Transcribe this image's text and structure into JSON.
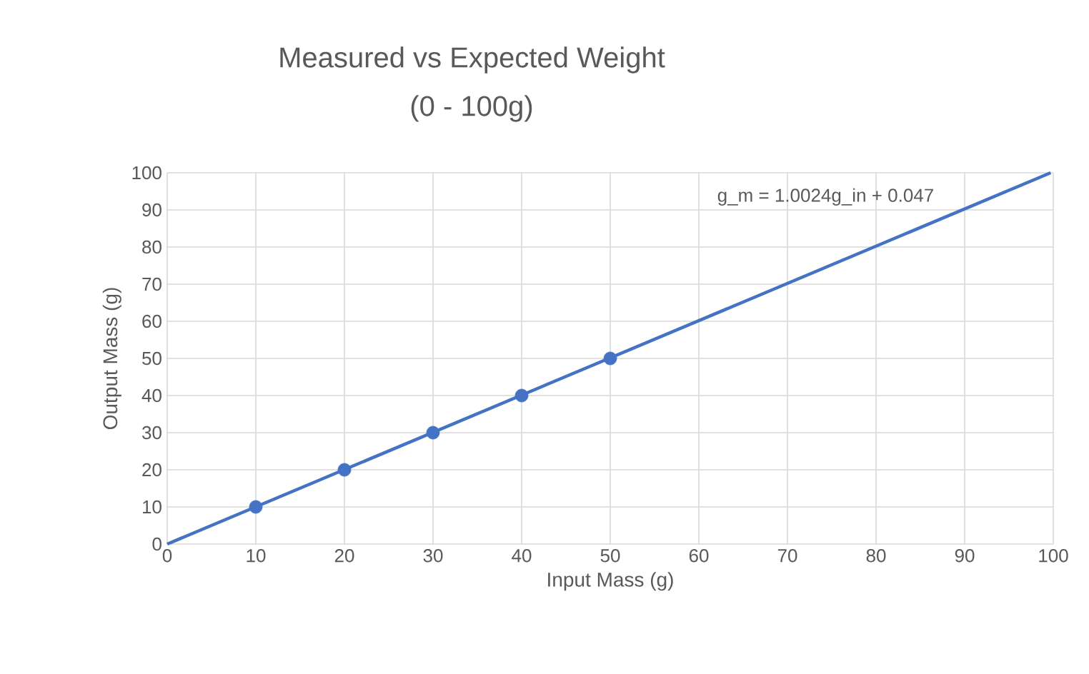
{
  "chart_data": {
    "type": "scatter",
    "title": "Measured vs Expected Weight",
    "subtitle": "(0 - 100g)",
    "xlabel": "Input Mass (g)",
    "ylabel": "Output Mass (g)",
    "x": [
      10,
      20,
      30,
      40,
      50
    ],
    "series": [
      {
        "color": "#4472c4",
        "marker": "circle",
        "values": [
          10,
          20,
          30,
          40,
          50
        ]
      },
      {
        "type": "line",
        "color": "#4472c4",
        "marker": "none",
        "line_style": "solid",
        "x": [
          0,
          99.7
        ],
        "values": [
          0,
          100
        ]
      }
    ],
    "xlim": [
      0,
      100
    ],
    "ylim": [
      0,
      100
    ],
    "xticks": [
      0,
      10,
      20,
      30,
      40,
      50,
      60,
      70,
      80,
      90,
      100
    ],
    "yticks": [
      0,
      10,
      20,
      30,
      40,
      50,
      60,
      70,
      80,
      90,
      100
    ],
    "grid": true,
    "annotations": [
      "g_m = 1.0024g_in + 0.047"
    ]
  }
}
